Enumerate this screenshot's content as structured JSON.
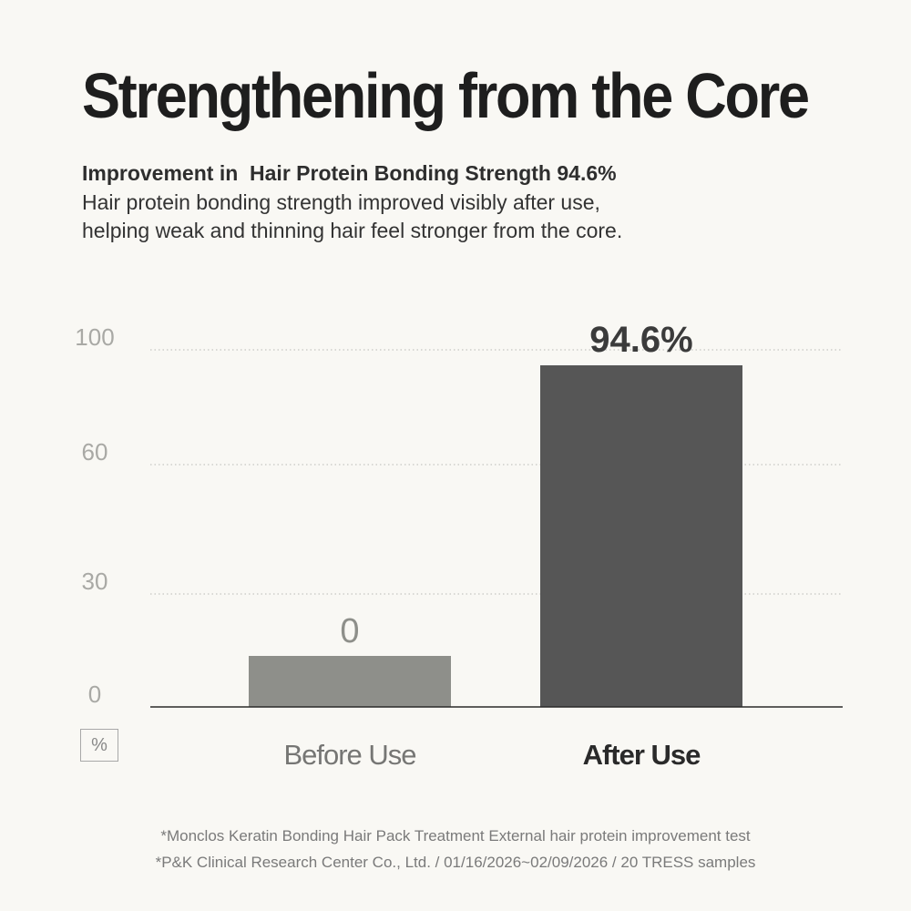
{
  "header": {
    "title": "Strengthening from the Core",
    "subtitle": "Improvement in  Hair Protein Bonding Strength 94.6%",
    "description_lines": [
      "Hair protein bonding strength improved visibly after use,",
      "helping weak and thinning hair feel stronger from the core."
    ]
  },
  "chart_data": {
    "type": "bar",
    "categories": [
      "Before Use",
      "After Use"
    ],
    "values": [
      0,
      94.6
    ],
    "data_labels": [
      "0",
      "94.6%"
    ],
    "yticks": [
      0,
      30,
      60,
      100
    ],
    "ytick_labels": [
      "0",
      "30",
      "60",
      "100"
    ],
    "unit_label": "%",
    "grid": true,
    "colors": [
      "#8e8f8a",
      "#565656"
    ],
    "category_emphasis": [
      "normal",
      "bold"
    ]
  },
  "footnotes": [
    "*Monclos Keratin Bonding Hair Pack Treatment External hair protein improvement test",
    "*P&K Clinical Research Center Co., Ltd. / 01/16/2026~02/09/2026 / 20 TRESS samples"
  ]
}
